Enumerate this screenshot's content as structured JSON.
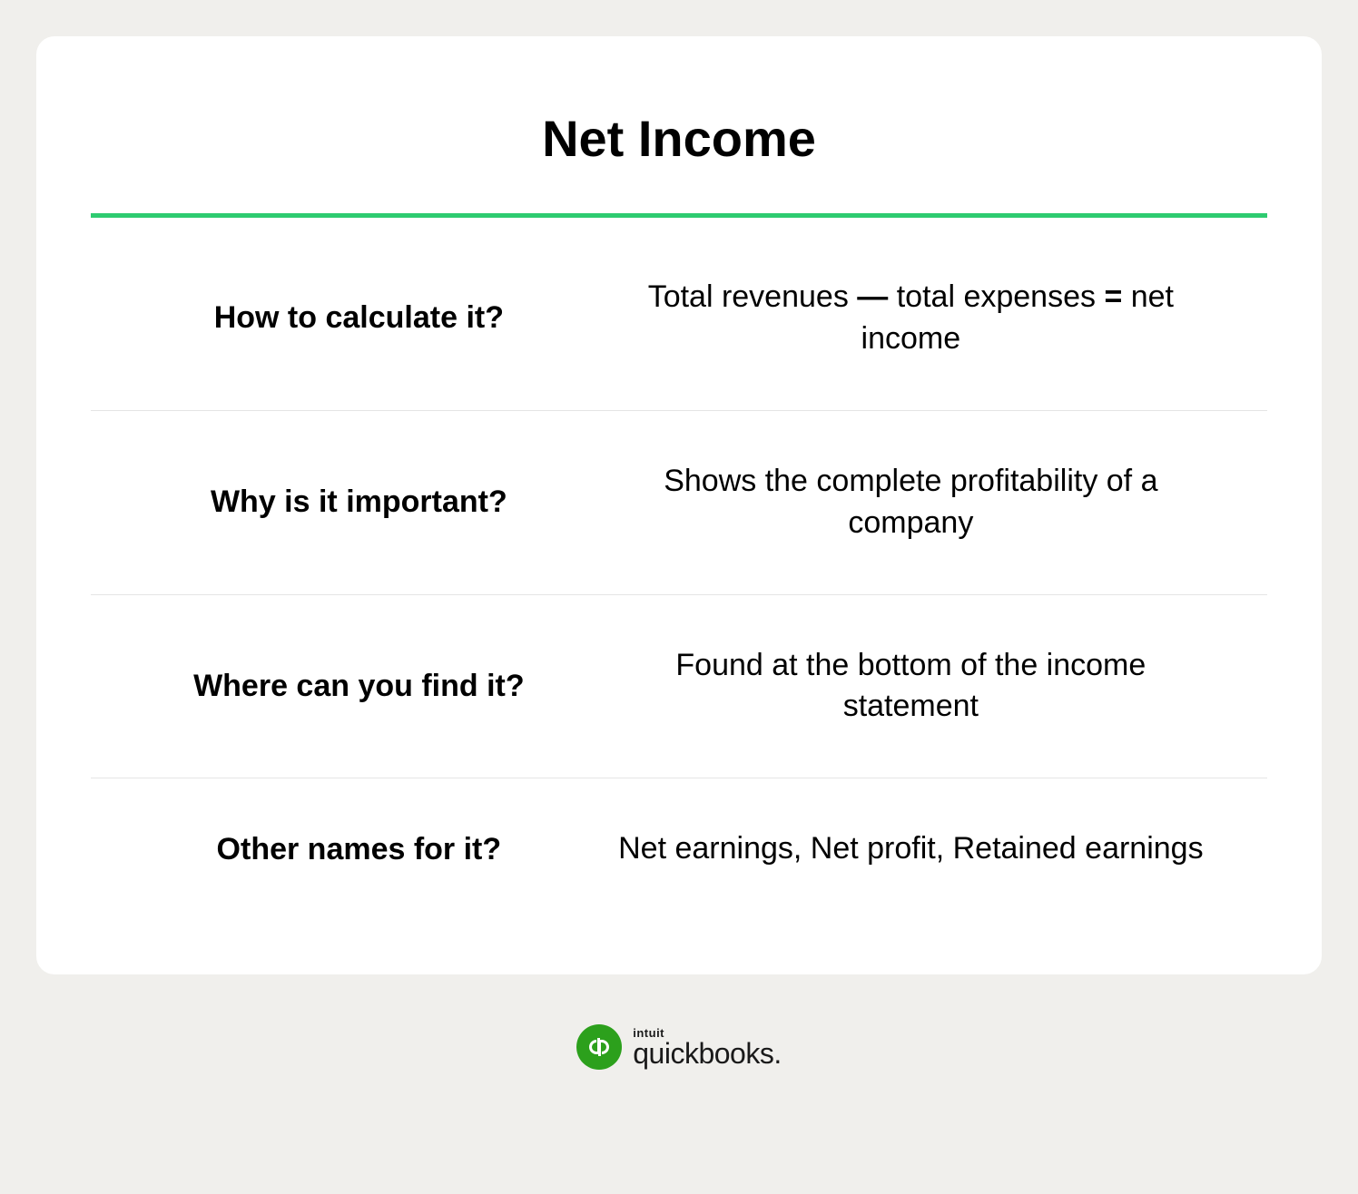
{
  "title": "Net Income",
  "accent_color": "#2ecb70",
  "background_color": "#f0efec",
  "card_background": "#ffffff",
  "divider_color": "#e5e5e5",
  "logo_brand_color": "#2ca01c",
  "rows": [
    {
      "question": "How to calculate it?",
      "answer_html": "Total revenues <span class=\"bold\">—</span> total expenses <span class=\"bold\">=</span> net income"
    },
    {
      "question": "Why is it important?",
      "answer_html": "Shows the complete profitability of a company"
    },
    {
      "question": "Where can you find it?",
      "answer_html": "Found at the bottom of the income statement"
    },
    {
      "question": "Other names for it?",
      "answer_html": "Net earnings, Net profit, Retained earnings"
    }
  ],
  "logo": {
    "intuit": "intuit",
    "quickbooks": "quickbooks."
  }
}
